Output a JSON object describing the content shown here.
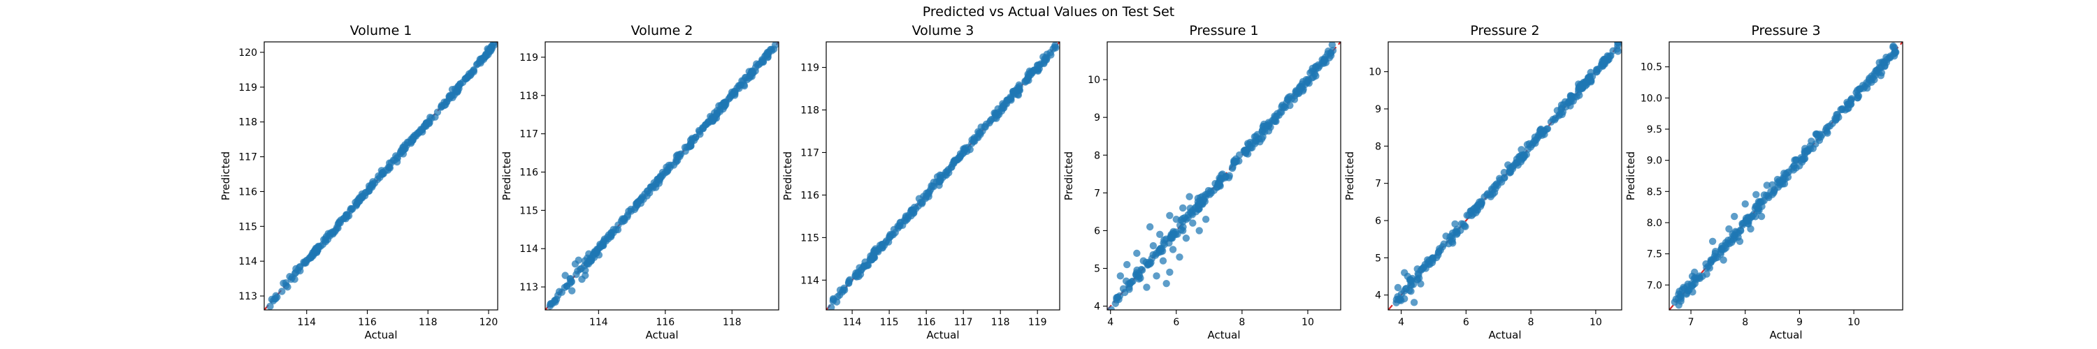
{
  "figure": {
    "title": "Predicted vs Actual Values on Test Set"
  },
  "colors": {
    "points": "#1f77b4",
    "identity_line": "#d62728",
    "axes": "#000000"
  },
  "chart_data": [
    {
      "type": "scatter",
      "title": "Volume 1",
      "xlabel": "Actual",
      "ylabel": "Predicted",
      "xlim": [
        112.6,
        120.3
      ],
      "ylim": [
        112.6,
        120.3
      ],
      "xticks": [
        "114",
        "116",
        "118",
        "120"
      ],
      "yticks": [
        "113",
        "114",
        "115",
        "116",
        "117",
        "118",
        "119",
        "120"
      ],
      "identity_line": true,
      "range": [
        112.7,
        120.2
      ],
      "noise": 0.05,
      "outliers": []
    },
    {
      "type": "scatter",
      "title": "Volume 2",
      "xlabel": "Actual",
      "ylabel": "Predicted",
      "xlim": [
        112.4,
        119.4
      ],
      "ylim": [
        112.4,
        119.4
      ],
      "xticks": [
        "114",
        "116",
        "118"
      ],
      "yticks": [
        "113",
        "114",
        "115",
        "116",
        "117",
        "118",
        "119"
      ],
      "identity_line": true,
      "range": [
        112.5,
        119.3
      ],
      "noise": 0.05,
      "outliers": [
        [
          113.0,
          113.3
        ],
        [
          113.2,
          112.9
        ],
        [
          113.3,
          113.6
        ],
        [
          113.5,
          113.2
        ],
        [
          113.4,
          113.7
        ],
        [
          113.6,
          113.3
        ]
      ]
    },
    {
      "type": "scatter",
      "title": "Volume 3",
      "xlabel": "Actual",
      "ylabel": "Predicted",
      "xlim": [
        113.3,
        119.6
      ],
      "ylim": [
        113.3,
        119.6
      ],
      "xticks": [
        "114",
        "115",
        "116",
        "117",
        "118",
        "119"
      ],
      "yticks": [
        "114",
        "115",
        "116",
        "117",
        "118",
        "119"
      ],
      "identity_line": true,
      "range": [
        113.4,
        119.5
      ],
      "noise": 0.05,
      "outliers": []
    },
    {
      "type": "scatter",
      "title": "Pressure 1",
      "xlabel": "Actual",
      "ylabel": "Predicted",
      "xlim": [
        3.9,
        11.0
      ],
      "ylim": [
        3.9,
        11.0
      ],
      "xticks": [
        "4",
        "6",
        "8",
        "10"
      ],
      "yticks": [
        "4",
        "5",
        "6",
        "7",
        "8",
        "9",
        "10"
      ],
      "identity_line": true,
      "range": [
        4.0,
        10.8
      ],
      "noise": 0.08,
      "outliers": [
        [
          4.3,
          4.8
        ],
        [
          4.5,
          5.1
        ],
        [
          4.6,
          4.6
        ],
        [
          4.8,
          5.4
        ],
        [
          5.0,
          5.2
        ],
        [
          5.1,
          4.5
        ],
        [
          5.3,
          5.6
        ],
        [
          5.4,
          4.8
        ],
        [
          5.2,
          6.1
        ],
        [
          5.5,
          5.9
        ],
        [
          5.6,
          5.2
        ],
        [
          5.8,
          6.4
        ],
        [
          5.9,
          5.5
        ],
        [
          5.7,
          4.6
        ],
        [
          6.0,
          6.3
        ],
        [
          6.1,
          5.3
        ],
        [
          6.2,
          6.6
        ],
        [
          6.3,
          5.8
        ],
        [
          6.4,
          6.9
        ],
        [
          6.5,
          6.2
        ],
        [
          6.6,
          6.5
        ],
        [
          6.7,
          6.0
        ],
        [
          6.8,
          6.7
        ],
        [
          6.9,
          6.3
        ],
        [
          6.2,
          6.0
        ],
        [
          5.8,
          4.9
        ]
      ]
    },
    {
      "type": "scatter",
      "title": "Pressure 2",
      "xlabel": "Actual",
      "ylabel": "Predicted",
      "xlim": [
        3.6,
        10.8
      ],
      "ylim": [
        3.6,
        10.8
      ],
      "xticks": [
        "4",
        "6",
        "8",
        "10"
      ],
      "yticks": [
        "4",
        "5",
        "6",
        "7",
        "8",
        "9",
        "10"
      ],
      "identity_line": true,
      "range": [
        3.8,
        10.7
      ],
      "noise": 0.07,
      "outliers": [
        [
          3.9,
          4.2
        ],
        [
          4.1,
          3.9
        ],
        [
          4.2,
          4.5
        ],
        [
          4.3,
          4.1
        ],
        [
          4.5,
          4.7
        ],
        [
          4.6,
          4.3
        ],
        [
          4.1,
          4.6
        ],
        [
          4.4,
          3.8
        ]
      ]
    },
    {
      "type": "scatter",
      "title": "Pressure 3",
      "xlabel": "Actual",
      "ylabel": "Predicted",
      "xlim": [
        6.6,
        10.9
      ],
      "ylim": [
        6.6,
        10.9
      ],
      "xticks": [
        "7",
        "8",
        "9",
        "10"
      ],
      "yticks": [
        "7.0",
        "7.5",
        "8.0",
        "8.5",
        "9.0",
        "9.5",
        "10.0",
        "10.5"
      ],
      "identity_line": true,
      "range": [
        6.7,
        10.8
      ],
      "noise": 0.05,
      "outliers": [
        [
          7.4,
          7.7
        ],
        [
          7.6,
          7.4
        ],
        [
          7.8,
          8.1
        ],
        [
          7.9,
          7.7
        ],
        [
          8.0,
          8.3
        ],
        [
          8.1,
          7.9
        ],
        [
          8.2,
          8.45
        ],
        [
          8.3,
          8.1
        ],
        [
          8.4,
          8.6
        ],
        [
          7.7,
          7.9
        ]
      ]
    }
  ]
}
